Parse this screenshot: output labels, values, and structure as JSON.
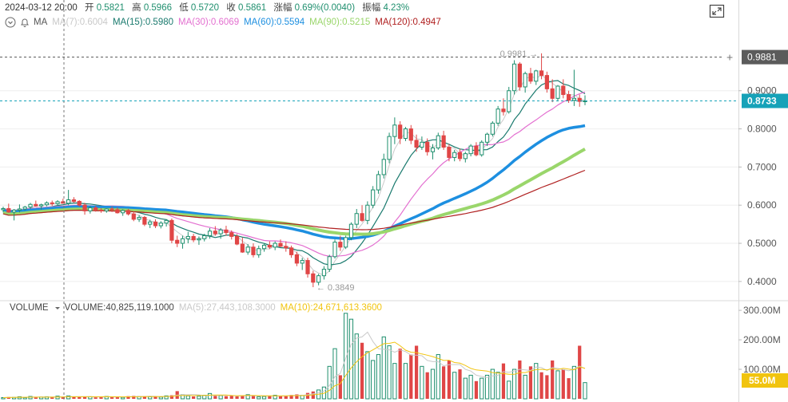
{
  "info": {
    "datetime": "2024-03-12 20:00",
    "open_label": "开",
    "open": "0.5821",
    "high_label": "高",
    "high": "0.5966",
    "low_label": "低",
    "low": "0.5720",
    "close_label": "收",
    "close": "0.5861",
    "change_label": "涨幅",
    "change": "0.69%(0.0040)",
    "amp_label": "振幅",
    "amp": "4.23%"
  },
  "ma_legend": {
    "title": "MA",
    "items": [
      {
        "text": "MA(7):0.6004",
        "color": "#c9c9c9"
      },
      {
        "text": "MA(15):0.5980",
        "color": "#1a7a6e"
      },
      {
        "text": "MA(30):0.6069",
        "color": "#e36fd0"
      },
      {
        "text": "MA(60):0.5594",
        "color": "#1d8fe0"
      },
      {
        "text": "MA(90):0.5215",
        "color": "#9ad66b"
      },
      {
        "text": "MA(120):0.4947",
        "color": "#b02020"
      }
    ]
  },
  "volume_legend": {
    "title": "VOLUME",
    "volume_text": "VOLUME:40,825,119.1000",
    "ma5_text": "MA(5):27,443,108.3000",
    "ma5_color": "#c9c9c9",
    "ma10_text": "MA(10):24,671,613.3600",
    "ma10_color": "#f1c40f"
  },
  "price_axis": {
    "ticks": [
      "0.9000",
      "0.8000",
      "0.7000",
      "0.6000",
      "0.5000",
      "0.4000"
    ],
    "hover_price": "0.9881",
    "current_price": "0.8733",
    "current_color": "#16a2b8"
  },
  "volume_axis": {
    "ticks": [
      "300.00M",
      "200.00M",
      "100.00M"
    ],
    "current_volume": "55.0M",
    "current_color": "#f1c40f"
  },
  "annotations": {
    "high_mark": "0.9981",
    "low_mark": "0.3849"
  },
  "colors": {
    "up": "#1f8f6e",
    "down": "#e04646",
    "grid": "#eeeeee",
    "crosshair": "#777777"
  },
  "chart_data": {
    "type": "candlestick",
    "candles": [
      [
        0.588,
        0.596,
        0.581,
        0.591
      ],
      [
        0.591,
        0.604,
        0.58,
        0.582
      ],
      [
        0.582,
        0.59,
        0.56,
        0.587
      ],
      [
        0.587,
        0.602,
        0.581,
        0.59
      ],
      [
        0.59,
        0.598,
        0.586,
        0.595
      ],
      [
        0.595,
        0.606,
        0.59,
        0.602
      ],
      [
        0.602,
        0.612,
        0.596,
        0.598
      ],
      [
        0.598,
        0.604,
        0.588,
        0.601
      ],
      [
        0.601,
        0.61,
        0.597,
        0.606
      ],
      [
        0.606,
        0.612,
        0.598,
        0.604
      ],
      [
        0.604,
        0.613,
        0.599,
        0.609
      ],
      [
        0.609,
        0.617,
        0.604,
        0.605
      ],
      [
        0.605,
        0.64,
        0.6,
        0.614
      ],
      [
        0.614,
        0.621,
        0.606,
        0.61
      ],
      [
        0.61,
        0.613,
        0.596,
        0.6
      ],
      [
        0.6,
        0.606,
        0.575,
        0.585
      ],
      [
        0.585,
        0.598,
        0.578,
        0.593
      ],
      [
        0.593,
        0.598,
        0.583,
        0.587
      ],
      [
        0.587,
        0.592,
        0.58,
        0.585
      ],
      [
        0.585,
        0.592,
        0.58,
        0.59
      ],
      [
        0.59,
        0.596,
        0.582,
        0.588
      ],
      [
        0.588,
        0.594,
        0.578,
        0.58
      ],
      [
        0.58,
        0.589,
        0.572,
        0.586
      ],
      [
        0.586,
        0.59,
        0.573,
        0.577
      ],
      [
        0.577,
        0.583,
        0.558,
        0.563
      ],
      [
        0.563,
        0.574,
        0.556,
        0.568
      ],
      [
        0.568,
        0.572,
        0.545,
        0.55
      ],
      [
        0.55,
        0.562,
        0.54,
        0.556
      ],
      [
        0.556,
        0.563,
        0.54,
        0.546
      ],
      [
        0.546,
        0.558,
        0.539,
        0.553
      ],
      [
        0.553,
        0.563,
        0.544,
        0.56
      ],
      [
        0.56,
        0.565,
        0.5,
        0.508
      ],
      [
        0.508,
        0.52,
        0.49,
        0.5
      ],
      [
        0.5,
        0.52,
        0.486,
        0.512
      ],
      [
        0.512,
        0.53,
        0.5,
        0.518
      ],
      [
        0.518,
        0.525,
        0.503,
        0.509
      ],
      [
        0.509,
        0.518,
        0.496,
        0.512
      ],
      [
        0.512,
        0.525,
        0.505,
        0.52
      ],
      [
        0.52,
        0.54,
        0.512,
        0.532
      ],
      [
        0.532,
        0.545,
        0.52,
        0.525
      ],
      [
        0.525,
        0.54,
        0.512,
        0.535
      ],
      [
        0.535,
        0.546,
        0.52,
        0.528
      ],
      [
        0.528,
        0.534,
        0.51,
        0.518
      ],
      [
        0.518,
        0.524,
        0.495,
        0.498
      ],
      [
        0.498,
        0.515,
        0.475,
        0.477
      ],
      [
        0.477,
        0.498,
        0.47,
        0.49
      ],
      [
        0.49,
        0.5,
        0.463,
        0.47
      ],
      [
        0.47,
        0.494,
        0.462,
        0.486
      ],
      [
        0.486,
        0.5,
        0.478,
        0.495
      ],
      [
        0.495,
        0.505,
        0.485,
        0.49
      ],
      [
        0.49,
        0.505,
        0.482,
        0.5
      ],
      [
        0.5,
        0.51,
        0.49,
        0.492
      ],
      [
        0.492,
        0.505,
        0.478,
        0.488
      ],
      [
        0.488,
        0.494,
        0.462,
        0.47
      ],
      [
        0.47,
        0.478,
        0.44,
        0.448
      ],
      [
        0.448,
        0.462,
        0.43,
        0.455
      ],
      [
        0.455,
        0.462,
        0.41,
        0.42
      ],
      [
        0.42,
        0.428,
        0.385,
        0.398
      ],
      [
        0.398,
        0.42,
        0.39,
        0.415
      ],
      [
        0.415,
        0.44,
        0.405,
        0.432
      ],
      [
        0.432,
        0.47,
        0.425,
        0.465
      ],
      [
        0.465,
        0.51,
        0.46,
        0.503
      ],
      [
        0.503,
        0.52,
        0.48,
        0.49
      ],
      [
        0.49,
        0.52,
        0.485,
        0.515
      ],
      [
        0.515,
        0.555,
        0.508,
        0.55
      ],
      [
        0.55,
        0.59,
        0.54,
        0.578
      ],
      [
        0.578,
        0.6,
        0.556,
        0.56
      ],
      [
        0.56,
        0.61,
        0.55,
        0.6
      ],
      [
        0.6,
        0.65,
        0.592,
        0.64
      ],
      [
        0.64,
        0.69,
        0.63,
        0.68
      ],
      [
        0.68,
        0.735,
        0.67,
        0.72
      ],
      [
        0.72,
        0.79,
        0.71,
        0.78
      ],
      [
        0.78,
        0.83,
        0.76,
        0.81
      ],
      [
        0.81,
        0.82,
        0.76,
        0.775
      ],
      [
        0.775,
        0.805,
        0.768,
        0.8
      ],
      [
        0.8,
        0.81,
        0.76,
        0.77
      ],
      [
        0.77,
        0.785,
        0.74,
        0.752
      ],
      [
        0.752,
        0.78,
        0.745,
        0.765
      ],
      [
        0.765,
        0.775,
        0.73,
        0.74
      ],
      [
        0.74,
        0.76,
        0.72,
        0.75
      ],
      [
        0.75,
        0.79,
        0.745,
        0.782
      ],
      [
        0.782,
        0.795,
        0.745,
        0.752
      ],
      [
        0.752,
        0.76,
        0.715,
        0.725
      ],
      [
        0.725,
        0.745,
        0.715,
        0.738
      ],
      [
        0.738,
        0.748,
        0.715,
        0.722
      ],
      [
        0.722,
        0.74,
        0.712,
        0.735
      ],
      [
        0.735,
        0.76,
        0.728,
        0.755
      ],
      [
        0.755,
        0.765,
        0.728,
        0.732
      ],
      [
        0.732,
        0.77,
        0.727,
        0.765
      ],
      [
        0.765,
        0.79,
        0.755,
        0.786
      ],
      [
        0.786,
        0.82,
        0.78,
        0.815
      ],
      [
        0.815,
        0.86,
        0.808,
        0.852
      ],
      [
        0.852,
        0.88,
        0.835,
        0.845
      ],
      [
        0.845,
        0.91,
        0.84,
        0.9
      ],
      [
        0.9,
        0.98,
        0.89,
        0.97
      ],
      [
        0.97,
        0.975,
        0.9,
        0.91
      ],
      [
        0.91,
        0.95,
        0.895,
        0.945
      ],
      [
        0.945,
        0.96,
        0.918,
        0.925
      ],
      [
        0.925,
        0.955,
        0.915,
        0.952
      ],
      [
        0.952,
        0.998,
        0.93,
        0.94
      ],
      [
        0.94,
        0.95,
        0.895,
        0.905
      ],
      [
        0.905,
        0.93,
        0.87,
        0.88
      ],
      [
        0.88,
        0.915,
        0.872,
        0.912
      ],
      [
        0.912,
        0.93,
        0.88,
        0.89
      ],
      [
        0.89,
        0.9,
        0.868,
        0.875
      ],
      [
        0.875,
        0.955,
        0.86,
        0.88
      ],
      [
        0.88,
        0.89,
        0.858,
        0.872
      ],
      [
        0.872,
        0.888,
        0.862,
        0.8733
      ]
    ],
    "volume": [
      4,
      6,
      5,
      7,
      4,
      8,
      5,
      6,
      7,
      5,
      9,
      6,
      10,
      7,
      6,
      8,
      7,
      5,
      6,
      8,
      6,
      7,
      5,
      9,
      10,
      8,
      9,
      7,
      8,
      6,
      10,
      12,
      26,
      14,
      10,
      8,
      9,
      12,
      18,
      10,
      11,
      9,
      10,
      8,
      12,
      14,
      10,
      7,
      8,
      11,
      12,
      10,
      9,
      13,
      15,
      12,
      20,
      25,
      30,
      40,
      110,
      170,
      80,
      290,
      270,
      220,
      190,
      160,
      130,
      150,
      210,
      180,
      120,
      170,
      120,
      150,
      180,
      110,
      90,
      100,
      150,
      110,
      130,
      90,
      100,
      70,
      80,
      60,
      70,
      80,
      100,
      90,
      120,
      60,
      100,
      130,
      80,
      110,
      120,
      90,
      80,
      130,
      95,
      100,
      70,
      110,
      180,
      55
    ],
    "volume_unit": "M",
    "ylim": [
      0.36,
      1.05
    ],
    "volume_ylim": [
      0,
      330
    ]
  }
}
